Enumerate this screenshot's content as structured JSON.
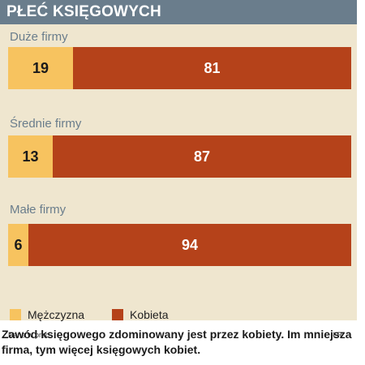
{
  "title": "PŁEĆ KSIĘGOWYCH",
  "chart_data": {
    "type": "bar",
    "orientation": "horizontal",
    "stacked": true,
    "categories": [
      "Duże firmy",
      "Średnie firmy",
      "Małe firmy"
    ],
    "series": [
      {
        "name": "Mężczyzna",
        "values": [
          19,
          13,
          6
        ],
        "color": "#f7c35f"
      },
      {
        "name": "Kobieta",
        "values": [
          81,
          87,
          94
        ],
        "color": "#b5421a"
      }
    ],
    "xlim": [
      0,
      100
    ],
    "legend_placement": "bottom-left",
    "grid": false
  },
  "note": "Dane w proc.",
  "source": "ŁR",
  "caption": "Zawód księgowego zdominowany jest przez kobiety. Im mniejsza firma, tym więcej księgowych kobiet."
}
